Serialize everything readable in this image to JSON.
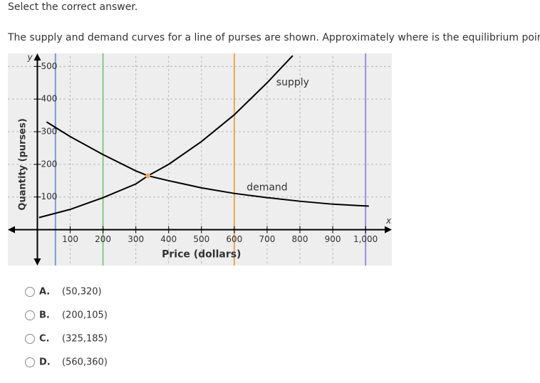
{
  "instruction": "Select the correct answer.",
  "question": "The supply and demand curves for a line of purses are shown. Approximately where is the equilibrium point?",
  "chart_data": {
    "type": "line",
    "x_label": "Price (dollars)",
    "y_label": "Quantity (purses)",
    "x_axis_letter": "x",
    "y_axis_letter": "y",
    "xlim": [
      -90,
      1080
    ],
    "ylim": [
      -110,
      540
    ],
    "xticks": [
      100,
      200,
      300,
      400,
      500,
      600,
      700,
      800,
      900,
      {
        "value": 1000,
        "label": "1,000"
      }
    ],
    "yticks": [
      100,
      200,
      300,
      400,
      500
    ],
    "grid": true,
    "series": [
      {
        "name": "supply",
        "color": "#000000",
        "x": [
          5,
          100,
          200,
          300,
          337,
          400,
          500,
          600,
          700,
          778
        ],
        "values": [
          37,
          62,
          98,
          140,
          165,
          200,
          270,
          352,
          450,
          533
        ]
      },
      {
        "name": "demand",
        "color": "#000000",
        "x": [
          28,
          100,
          200,
          300,
          337,
          400,
          500,
          600,
          700,
          800,
          900,
          1010
        ],
        "values": [
          330,
          285,
          230,
          180,
          165,
          150,
          128,
          111,
          98,
          87,
          78,
          72
        ]
      }
    ],
    "reference_lines": [
      {
        "x": 55,
        "color": "#7b9ad6"
      },
      {
        "x": 200,
        "color": "#8cc58c"
      },
      {
        "x": 600,
        "color": "#f2a45a"
      },
      {
        "x": 1000,
        "color": "#9b8fd8"
      }
    ],
    "point": {
      "x": 337,
      "y": 165,
      "color": "#f5a86a"
    }
  },
  "options": [
    {
      "letter": "A.",
      "text": "(50,320)"
    },
    {
      "letter": "B.",
      "text": "(200,105)"
    },
    {
      "letter": "C.",
      "text": "(325,185)"
    },
    {
      "letter": "D.",
      "text": "(560,360)"
    }
  ]
}
